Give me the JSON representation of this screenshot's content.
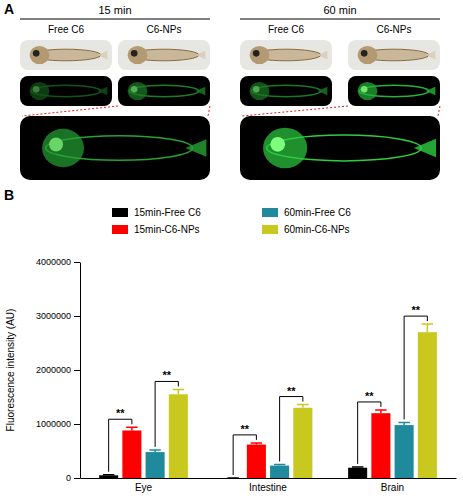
{
  "panel_a": {
    "label": "A",
    "groups": [
      {
        "title": "15 min",
        "columns": [
          "Free C6",
          "C6-NPs"
        ]
      },
      {
        "title": "60 min",
        "columns": [
          "Free C6",
          "C6-NPs"
        ]
      }
    ]
  },
  "chart_data": {
    "type": "bar",
    "panel_label": "B",
    "y_label": "Fluorescence intensity (AU)",
    "categories": [
      "Eye",
      "Intestine",
      "Brain"
    ],
    "series": [
      {
        "name": "15min-Free C6",
        "color": "#000000",
        "values": [
          50000,
          0,
          190000
        ],
        "errors": [
          10000,
          0,
          15000
        ]
      },
      {
        "name": "15min-C6-NPs",
        "color": "#ff0000",
        "values": [
          880000,
          620000,
          1200000
        ],
        "errors": [
          60000,
          30000,
          60000
        ]
      },
      {
        "name": "60min-Free C6",
        "color": "#1f8a9c",
        "values": [
          480000,
          230000,
          980000
        ],
        "errors": [
          40000,
          20000,
          50000
        ]
      },
      {
        "name": "60min-C6-NPs",
        "color": "#c8c81e",
        "values": [
          1550000,
          1300000,
          2700000
        ],
        "errors": [
          90000,
          60000,
          150000
        ]
      }
    ],
    "ylim": [
      0,
      4000000
    ],
    "yticks": [
      0,
      1000000,
      2000000,
      3000000,
      4000000
    ],
    "legend": "top",
    "annotations": [
      {
        "text": "**",
        "category": "Eye",
        "between": [
          "15min-Free C6",
          "15min-C6-NPs"
        ]
      },
      {
        "text": "**",
        "category": "Eye",
        "between": [
          "60min-Free C6",
          "60min-C6-NPs"
        ]
      },
      {
        "text": "**",
        "category": "Intestine",
        "between": [
          "15min-Free C6",
          "15min-C6-NPs"
        ]
      },
      {
        "text": "**",
        "category": "Intestine",
        "between": [
          "60min-Free C6",
          "60min-C6-NPs"
        ]
      },
      {
        "text": "**",
        "category": "Brain",
        "between": [
          "15min-Free C6",
          "15min-C6-NPs"
        ]
      },
      {
        "text": "**",
        "category": "Brain",
        "between": [
          "60min-Free C6",
          "60min-C6-NPs"
        ]
      }
    ]
  }
}
